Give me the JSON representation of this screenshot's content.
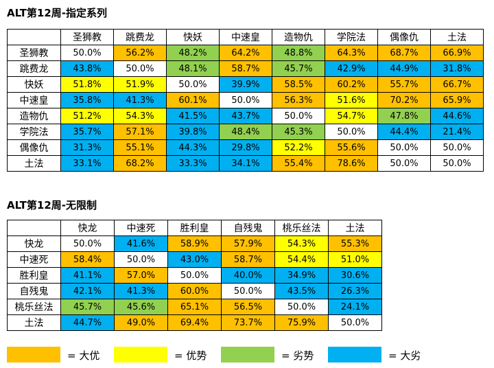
{
  "tables": [
    {
      "title": "ALT第12周-指定系列",
      "headers": [
        "圣狮教",
        "跳费龙",
        "快妖",
        "中速皇",
        "造物仇",
        "学院法",
        "偶像仇",
        "土法"
      ],
      "rows": [
        {
          "label": "圣狮教",
          "values": [
            "50.0%",
            "56.2%",
            "48.2%",
            "64.2%",
            "48.8%",
            "64.3%",
            "68.7%",
            "66.9%"
          ],
          "colors": [
            "#ffffff",
            "#ffc000",
            "#92d050",
            "#ffc000",
            "#92d050",
            "#ffc000",
            "#ffc000",
            "#ffc000"
          ]
        },
        {
          "label": "跳费龙",
          "values": [
            "43.8%",
            "50.0%",
            "48.1%",
            "58.7%",
            "45.7%",
            "42.9%",
            "44.9%",
            "31.8%"
          ],
          "colors": [
            "#00b0f0",
            "#ffffff",
            "#92d050",
            "#ffc000",
            "#92d050",
            "#00b0f0",
            "#00b0f0",
            "#00b0f0"
          ]
        },
        {
          "label": "快妖",
          "values": [
            "51.8%",
            "51.9%",
            "50.0%",
            "39.9%",
            "58.5%",
            "60.2%",
            "55.7%",
            "66.7%"
          ],
          "colors": [
            "#ffff00",
            "#ffff00",
            "#ffffff",
            "#00b0f0",
            "#ffc000",
            "#ffc000",
            "#ffc000",
            "#ffc000"
          ]
        },
        {
          "label": "中速皇",
          "values": [
            "35.8%",
            "41.3%",
            "60.1%",
            "50.0%",
            "56.3%",
            "51.6%",
            "70.2%",
            "65.9%"
          ],
          "colors": [
            "#00b0f0",
            "#00b0f0",
            "#ffc000",
            "#ffffff",
            "#ffc000",
            "#ffff00",
            "#ffc000",
            "#ffc000"
          ]
        },
        {
          "label": "造物仇",
          "values": [
            "51.2%",
            "54.3%",
            "41.5%",
            "43.7%",
            "50.0%",
            "54.7%",
            "47.8%",
            "44.6%"
          ],
          "colors": [
            "#ffff00",
            "#ffff00",
            "#00b0f0",
            "#00b0f0",
            "#ffffff",
            "#ffff00",
            "#92d050",
            "#00b0f0"
          ]
        },
        {
          "label": "学院法",
          "values": [
            "35.7%",
            "57.1%",
            "39.8%",
            "48.4%",
            "45.3%",
            "50.0%",
            "44.4%",
            "21.4%"
          ],
          "colors": [
            "#00b0f0",
            "#ffc000",
            "#00b0f0",
            "#92d050",
            "#92d050",
            "#ffffff",
            "#00b0f0",
            "#00b0f0"
          ]
        },
        {
          "label": "偶像仇",
          "values": [
            "31.3%",
            "55.1%",
            "44.3%",
            "29.8%",
            "52.2%",
            "55.6%",
            "50.0%",
            "50.0%"
          ],
          "colors": [
            "#00b0f0",
            "#ffc000",
            "#00b0f0",
            "#00b0f0",
            "#ffff00",
            "#ffc000",
            "#ffffff",
            "#ffffff"
          ]
        },
        {
          "label": "土法",
          "values": [
            "33.1%",
            "68.2%",
            "33.3%",
            "34.1%",
            "55.4%",
            "78.6%",
            "50.0%",
            "50.0%"
          ],
          "colors": [
            "#00b0f0",
            "#ffc000",
            "#00b0f0",
            "#00b0f0",
            "#ffc000",
            "#ffc000",
            "#ffffff",
            "#ffffff"
          ]
        }
      ]
    },
    {
      "title": "ALT第12周-无限制",
      "headers": [
        "快龙",
        "中速死",
        "胜利皇",
        "自残鬼",
        "桃乐丝法",
        "土法"
      ],
      "rows": [
        {
          "label": "快龙",
          "values": [
            "50.0%",
            "41.6%",
            "58.9%",
            "57.9%",
            "54.3%",
            "55.3%"
          ],
          "colors": [
            "#ffffff",
            "#00b0f0",
            "#ffc000",
            "#ffc000",
            "#ffff00",
            "#ffc000"
          ]
        },
        {
          "label": "中速死",
          "values": [
            "58.4%",
            "50.0%",
            "43.0%",
            "58.7%",
            "54.4%",
            "51.0%"
          ],
          "colors": [
            "#ffc000",
            "#ffffff",
            "#00b0f0",
            "#ffc000",
            "#ffff00",
            "#ffff00"
          ]
        },
        {
          "label": "胜利皇",
          "values": [
            "41.1%",
            "57.0%",
            "50.0%",
            "40.0%",
            "34.9%",
            "30.6%"
          ],
          "colors": [
            "#00b0f0",
            "#ffc000",
            "#ffffff",
            "#00b0f0",
            "#00b0f0",
            "#00b0f0"
          ]
        },
        {
          "label": "自残鬼",
          "values": [
            "42.1%",
            "41.3%",
            "60.0%",
            "50.0%",
            "43.5%",
            "26.3%"
          ],
          "colors": [
            "#00b0f0",
            "#00b0f0",
            "#ffc000",
            "#ffffff",
            "#00b0f0",
            "#00b0f0"
          ]
        },
        {
          "label": "桃乐丝法",
          "values": [
            "45.7%",
            "45.6%",
            "65.1%",
            "56.5%",
            "50.0%",
            "24.1%"
          ],
          "colors": [
            "#92d050",
            "#92d050",
            "#ffc000",
            "#ffc000",
            "#ffffff",
            "#00b0f0"
          ]
        },
        {
          "label": "土法",
          "values": [
            "44.7%",
            "49.0%",
            "69.4%",
            "73.7%",
            "75.9%",
            "50.0%"
          ],
          "colors": [
            "#00b0f0",
            "#ffc000",
            "#ffc000",
            "#ffc000",
            "#ffc000",
            "#ffffff"
          ]
        }
      ]
    }
  ],
  "legend": [
    {
      "label": "= 大优",
      "color": "#ffc000"
    },
    {
      "label": "= 优势",
      "color": "#ffff00"
    },
    {
      "label": "= 劣势",
      "color": "#92d050"
    },
    {
      "label": "= 大劣",
      "color": "#00b0f0"
    }
  ]
}
